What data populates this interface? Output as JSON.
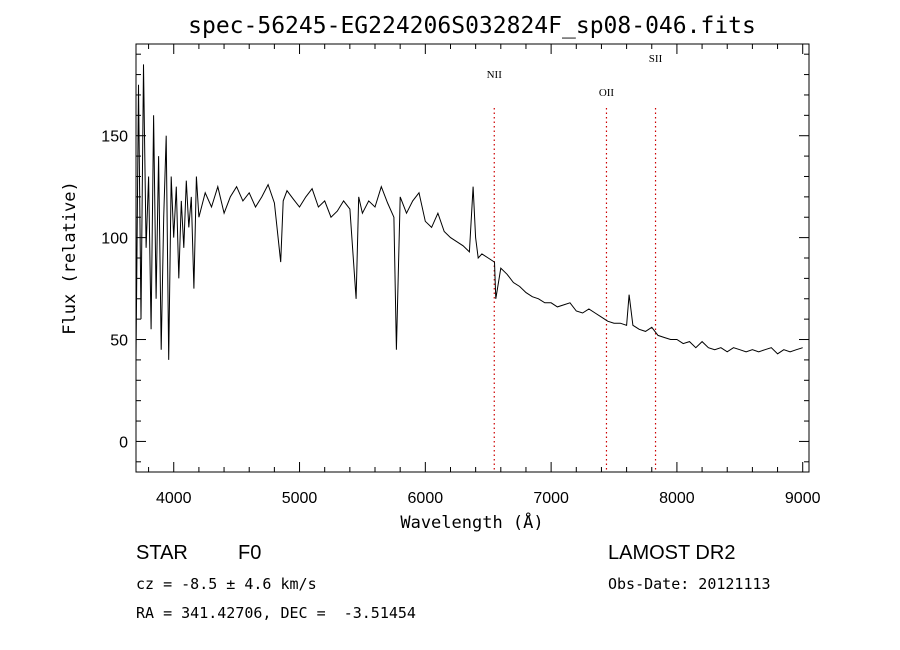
{
  "chart_data": {
    "type": "line",
    "title": "spec-56245-EG224206S032824F_sp08-046.fits",
    "xlabel": "Wavelength (Å)",
    "ylabel": "Flux (relative)",
    "xlim": [
      3700,
      9050
    ],
    "ylim": [
      -15,
      195
    ],
    "xticks": [
      4000,
      5000,
      6000,
      7000,
      8000,
      9000
    ],
    "yticks": [
      0,
      50,
      100,
      150
    ],
    "grid": false,
    "line_color": "#000000",
    "marker_color": "#cc0000",
    "emission_lines": [
      {
        "name": "NII",
        "wavelength": 6548
      },
      {
        "name": "OII",
        "wavelength": 7440
      },
      {
        "name": "SII",
        "wavelength": 7830
      }
    ],
    "series": [
      {
        "x": [
          3700,
          3720,
          3740,
          3760,
          3780,
          3800,
          3820,
          3840,
          3860,
          3880,
          3900,
          3920,
          3940,
          3960,
          3980,
          4000,
          4020,
          4040,
          4060,
          4080,
          4100,
          4120,
          4140,
          4160,
          4180,
          4200,
          4250,
          4300,
          4350,
          4400,
          4450,
          4500,
          4550,
          4600,
          4650,
          4700,
          4750,
          4800,
          4850,
          4870,
          4900,
          4950,
          5000,
          5050,
          5100,
          5150,
          5200,
          5250,
          5300,
          5350,
          5400,
          5450,
          5470,
          5500,
          5550,
          5600,
          5650,
          5700,
          5750,
          5770,
          5800,
          5850,
          5900,
          5950,
          6000,
          6050,
          6100,
          6150,
          6200,
          6250,
          6300,
          6350,
          6380,
          6400,
          6420,
          6450,
          6500,
          6550,
          6560,
          6600,
          6650,
          6700,
          6750,
          6800,
          6850,
          6900,
          6950,
          7000,
          7050,
          7100,
          7150,
          7200,
          7250,
          7300,
          7350,
          7400,
          7450,
          7500,
          7550,
          7600,
          7620,
          7650,
          7700,
          7750,
          7800,
          7850,
          7900,
          7950,
          8000,
          8050,
          8100,
          8150,
          8200,
          8250,
          8300,
          8350,
          8400,
          8450,
          8500,
          8550,
          8600,
          8650,
          8700,
          8750,
          8800,
          8850,
          8900,
          8950,
          9000
        ],
        "y": [
          40,
          175,
          60,
          185,
          95,
          130,
          55,
          160,
          70,
          140,
          45,
          110,
          150,
          40,
          130,
          100,
          125,
          80,
          118,
          95,
          128,
          105,
          120,
          75,
          130,
          110,
          122,
          115,
          125,
          112,
          120,
          125,
          118,
          122,
          115,
          120,
          126,
          117,
          88,
          118,
          123,
          119,
          115,
          120,
          124,
          115,
          118,
          110,
          113,
          118,
          114,
          70,
          120,
          112,
          118,
          115,
          125,
          117,
          110,
          45,
          120,
          112,
          118,
          122,
          108,
          105,
          112,
          103,
          100,
          98,
          96,
          93,
          125,
          100,
          90,
          92,
          90,
          88,
          70,
          85,
          82,
          78,
          76,
          73,
          71,
          70,
          68,
          68,
          66,
          67,
          68,
          64,
          63,
          65,
          63,
          61,
          59,
          58,
          58,
          57,
          72,
          57,
          55,
          54,
          56,
          52,
          51,
          50,
          50,
          48,
          49,
          46,
          49,
          46,
          45,
          46,
          44,
          46,
          45,
          44,
          45,
          44,
          45,
          46,
          43,
          45,
          44,
          45,
          46
        ]
      }
    ]
  },
  "info": {
    "object_class": "STAR",
    "subclass": "F0",
    "survey": "LAMOST DR2",
    "redshift_line": "cz = -8.5 ± 4.6 km/s",
    "obs_date": "Obs-Date: 20121113",
    "coords": "RA = 341.42706, DEC =  -3.51454"
  }
}
